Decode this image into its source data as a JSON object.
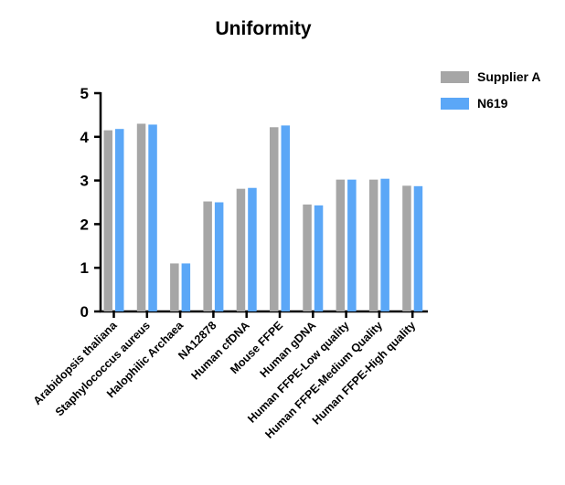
{
  "chart_data": {
    "type": "bar",
    "title": "Uniformity",
    "xlabel": "",
    "ylabel": "",
    "ylim": [
      0,
      5
    ],
    "yticks": [
      0,
      1,
      2,
      3,
      4,
      5
    ],
    "grid": false,
    "legend_position": "top-right",
    "categories": [
      "Arabidopsis thaliana",
      "Staphylococcus aureus",
      "Halophilic Archaea",
      "NA12878",
      "Human cfDNA",
      "Mouse FFPE",
      "Human gDNA",
      "Human FFPE-Low quality",
      "Human FFPE-Medium Quality",
      "Human FFPE-High quality"
    ],
    "series": [
      {
        "name": "Supplier A",
        "color": "#a6a6a6",
        "values": [
          4.15,
          4.3,
          1.1,
          2.52,
          2.81,
          4.22,
          2.45,
          3.02,
          3.02,
          2.88
        ]
      },
      {
        "name": "N619",
        "color": "#5ba7f7",
        "values": [
          4.18,
          4.28,
          1.1,
          2.5,
          2.83,
          4.26,
          2.43,
          3.02,
          3.04,
          2.87
        ]
      }
    ]
  }
}
